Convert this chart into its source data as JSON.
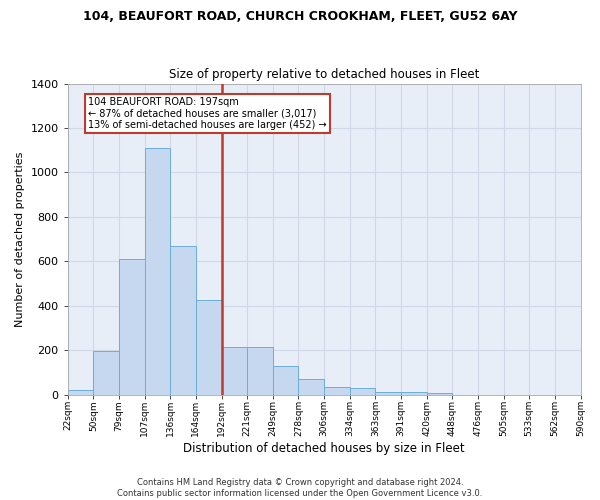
{
  "title1": "104, BEAUFORT ROAD, CHURCH CROOKHAM, FLEET, GU52 6AY",
  "title2": "Size of property relative to detached houses in Fleet",
  "xlabel": "Distribution of detached houses by size in Fleet",
  "ylabel": "Number of detached properties",
  "bar_values": [
    20,
    195,
    610,
    1110,
    670,
    425,
    215,
    215,
    130,
    72,
    35,
    28,
    13,
    10,
    5,
    0,
    0,
    0,
    0,
    0
  ],
  "bin_labels": [
    "22sqm",
    "50sqm",
    "79sqm",
    "107sqm",
    "136sqm",
    "164sqm",
    "192sqm",
    "221sqm",
    "249sqm",
    "278sqm",
    "306sqm",
    "334sqm",
    "363sqm",
    "391sqm",
    "420sqm",
    "448sqm",
    "476sqm",
    "505sqm",
    "533sqm",
    "562sqm",
    "590sqm"
  ],
  "bar_color": "#c5d8f0",
  "bar_edge_color": "#6baed6",
  "grid_color": "#d0d8e8",
  "bg_color": "#e8eef8",
  "vline_color": "#c0392b",
  "annotation_text": "104 BEAUFORT ROAD: 197sqm\n← 87% of detached houses are smaller (3,017)\n13% of semi-detached houses are larger (452) →",
  "annotation_box_color": "#ffffff",
  "annotation_border_color": "#c0392b",
  "footer": "Contains HM Land Registry data © Crown copyright and database right 2024.\nContains public sector information licensed under the Open Government Licence v3.0.",
  "ylim": [
    0,
    1400
  ],
  "yticks": [
    0,
    200,
    400,
    600,
    800,
    1000,
    1200,
    1400
  ]
}
